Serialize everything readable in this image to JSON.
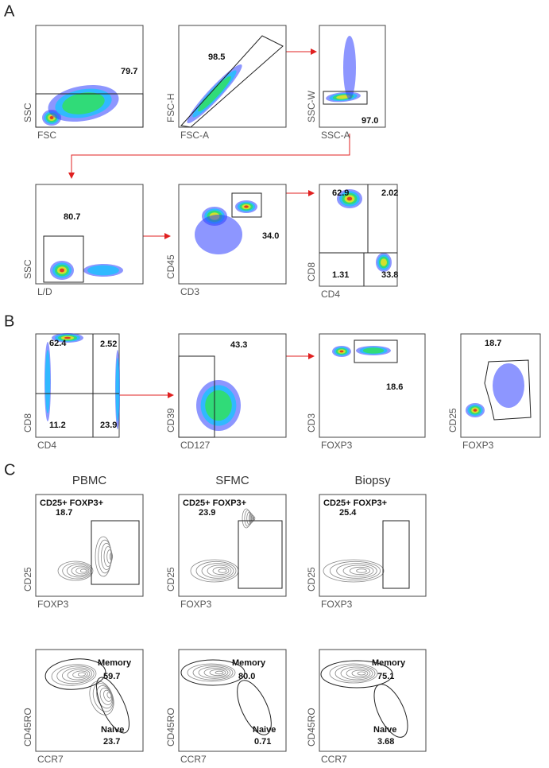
{
  "panels": [
    {
      "label": "A",
      "plots": [
        {
          "x_label": "FSC",
          "y_label": "SSC",
          "gates": [
            {
              "value": "79.7"
            }
          ]
        },
        {
          "x_label": "FSC-A",
          "y_label": "FSC-H",
          "gates": [
            {
              "value": "98.5"
            }
          ]
        },
        {
          "x_label": "SSC-A",
          "y_label": "SSC-W",
          "gates": [
            {
              "value": "97.0"
            }
          ]
        },
        {
          "x_label": "L/D",
          "y_label": "SSC",
          "gates": [
            {
              "value": "80.7"
            }
          ]
        },
        {
          "x_label": "CD3",
          "y_label": "CD45",
          "gates": [
            {
              "value": "34.0"
            }
          ]
        },
        {
          "x_label": "CD4",
          "y_label": "CD8",
          "gates": [
            {
              "value": "62.9"
            },
            {
              "value": "2.02"
            },
            {
              "value": "1.31"
            },
            {
              "value": "33.8"
            }
          ]
        }
      ]
    },
    {
      "label": "B",
      "plots": [
        {
          "x_label": "CD4",
          "y_label": "CD8",
          "gates": [
            {
              "value": "62.4"
            },
            {
              "value": "2.52"
            },
            {
              "value": "11.2"
            },
            {
              "value": "23.9"
            }
          ]
        },
        {
          "x_label": "CD127",
          "y_label": "CD39",
          "gates": [
            {
              "value": "43.3"
            }
          ]
        },
        {
          "x_label": "FOXP3",
          "y_label": "CD3",
          "gates": [
            {
              "value": "18.6"
            }
          ]
        },
        {
          "x_label": "FOXP3",
          "y_label": "CD25",
          "gates": [
            {
              "value": "18.7"
            }
          ]
        }
      ]
    },
    {
      "label": "C",
      "plots": [
        {
          "title": "PBMC",
          "x_label": "FOXP3",
          "y_label": "CD25",
          "gates": [
            {
              "name": "CD25+ FOXP3+",
              "value": "18.7"
            }
          ]
        },
        {
          "title": "SFMC",
          "x_label": "FOXP3",
          "y_label": "CD25",
          "gates": [
            {
              "name": "CD25+ FOXP3+",
              "value": "23.9"
            }
          ]
        },
        {
          "title": "Biopsy",
          "x_label": "FOXP3",
          "y_label": "CD25",
          "gates": [
            {
              "name": "CD25+ FOXP3+",
              "value": "25.4"
            }
          ]
        },
        {
          "x_label": "CCR7",
          "y_label": "CD45RO",
          "gates": [
            {
              "name": "Memory",
              "value": "59.7"
            },
            {
              "name": "Naive",
              "value": "23.7"
            }
          ]
        },
        {
          "x_label": "CCR7",
          "y_label": "CD45RO",
          "gates": [
            {
              "name": "Memory",
              "value": "80.0"
            },
            {
              "name": "Naive",
              "value": "0.71"
            }
          ]
        },
        {
          "x_label": "CCR7",
          "y_label": "CD45RO",
          "gates": [
            {
              "name": "Memory",
              "value": "75.1"
            },
            {
              "name": "Naive",
              "value": "3.68"
            }
          ]
        }
      ]
    }
  ]
}
